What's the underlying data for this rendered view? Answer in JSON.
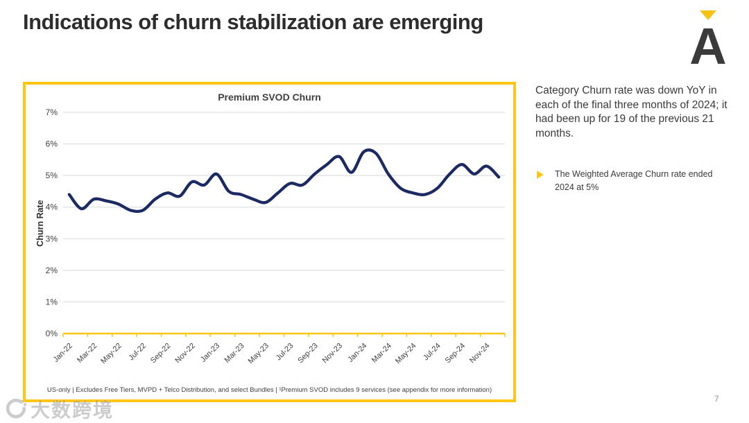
{
  "slide": {
    "title": "Indications of churn stabilization are emerging",
    "page_number": "7"
  },
  "logo": {
    "letter": "A",
    "accent_color": "#F6C213",
    "letter_color": "#3b3b3b"
  },
  "right_panel": {
    "paragraph": "Category Churn rate was down YoY in each of the final three months of 2024; it had been up for 19 of the previous 21 months.",
    "bullet_text": "The Weighted Average Churn rate ended 2024 at 5%"
  },
  "watermark": {
    "text": "大数跨境"
  },
  "chart_data": {
    "type": "line",
    "title": "Premium SVOD Churn",
    "ylabel": "Churn Rate",
    "footnote": "US-only | Excludes Free Tiers, MVPD + Telco Distribution, and select Bundles | ¹Premium SVOD includes 9 services (see appendix for more information)",
    "x": [
      "Jan-22",
      "Feb-22",
      "Mar-22",
      "Apr-22",
      "May-22",
      "Jun-22",
      "Jul-22",
      "Aug-22",
      "Sep-22",
      "Oct-22",
      "Nov-22",
      "Dec-22",
      "Jan-23",
      "Feb-23",
      "Mar-23",
      "Apr-23",
      "May-23",
      "Jun-23",
      "Jul-23",
      "Aug-23",
      "Sep-23",
      "Oct-23",
      "Nov-23",
      "Dec-23",
      "Jan-24",
      "Feb-24",
      "Mar-24",
      "Apr-24",
      "May-24",
      "Jun-24",
      "Jul-24",
      "Aug-24",
      "Sep-24",
      "Oct-24",
      "Nov-24",
      "Dec-24"
    ],
    "values": [
      4.4,
      3.95,
      4.25,
      4.2,
      4.1,
      3.9,
      3.9,
      4.25,
      4.45,
      4.35,
      4.8,
      4.7,
      5.05,
      4.5,
      4.4,
      4.25,
      4.15,
      4.45,
      4.75,
      4.7,
      5.05,
      5.35,
      5.6,
      5.1,
      5.75,
      5.7,
      5.05,
      4.6,
      4.45,
      4.4,
      4.6,
      5.05,
      5.35,
      5.05,
      5.3,
      4.95
    ],
    "ylim": [
      0,
      7
    ],
    "yticks": [
      0,
      1,
      2,
      3,
      4,
      5,
      6,
      7
    ],
    "ytick_suffix": "%",
    "x_tick_every": 2,
    "grid": true,
    "legend": "none",
    "line_color": "#1B2A63",
    "axis_color": "#FFC613",
    "grid_color": "#D8D8D8"
  }
}
